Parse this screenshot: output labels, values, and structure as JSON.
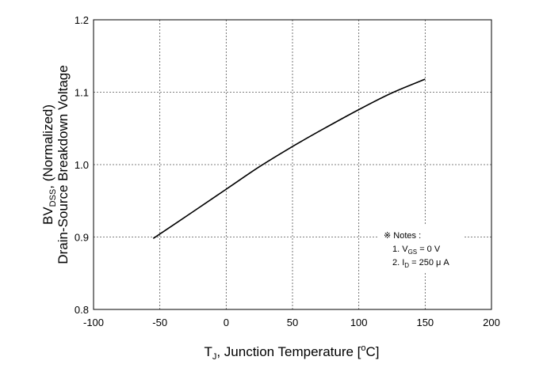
{
  "chart_data": {
    "type": "line",
    "xlabel": {
      "prefix": "T",
      "sub": "J",
      "rest": ", Junction Temperature [",
      "sup": "o",
      "unit": "C]"
    },
    "ylabel": {
      "line1": {
        "prefix": "BV",
        "sub": "DSS",
        "rest": ", (Normalized)"
      },
      "line2": "Drain-Source Breakdown Voltage"
    },
    "xlim": [
      -100,
      200
    ],
    "ylim": [
      0.8,
      1.2
    ],
    "xticks": [
      -100,
      -50,
      0,
      50,
      100,
      150,
      200
    ],
    "yticks": [
      0.8,
      0.9,
      1.0,
      1.1,
      1.2
    ],
    "xtick_labels": [
      "-100",
      "-50",
      "0",
      "50",
      "100",
      "150",
      "200"
    ],
    "ytick_labels": [
      "0.8",
      "0.9",
      "1.0",
      "1.1",
      "1.2"
    ],
    "grid": true,
    "series": [
      {
        "x": [
          -55,
          -25,
          0,
          25,
          50,
          75,
          100,
          125,
          150
        ],
        "y": [
          0.898,
          0.935,
          0.966,
          0.997,
          1.025,
          1.051,
          1.076,
          1.099,
          1.118
        ]
      }
    ],
    "notes": {
      "title": "※ Notes :",
      "items": [
        {
          "num": "1. ",
          "prefix": "V",
          "sub": "GS",
          "rest": " = 0 V"
        },
        {
          "num": "2. ",
          "prefix": "I",
          "sub": "D",
          "rest": " = 250 μ A"
        }
      ]
    }
  }
}
